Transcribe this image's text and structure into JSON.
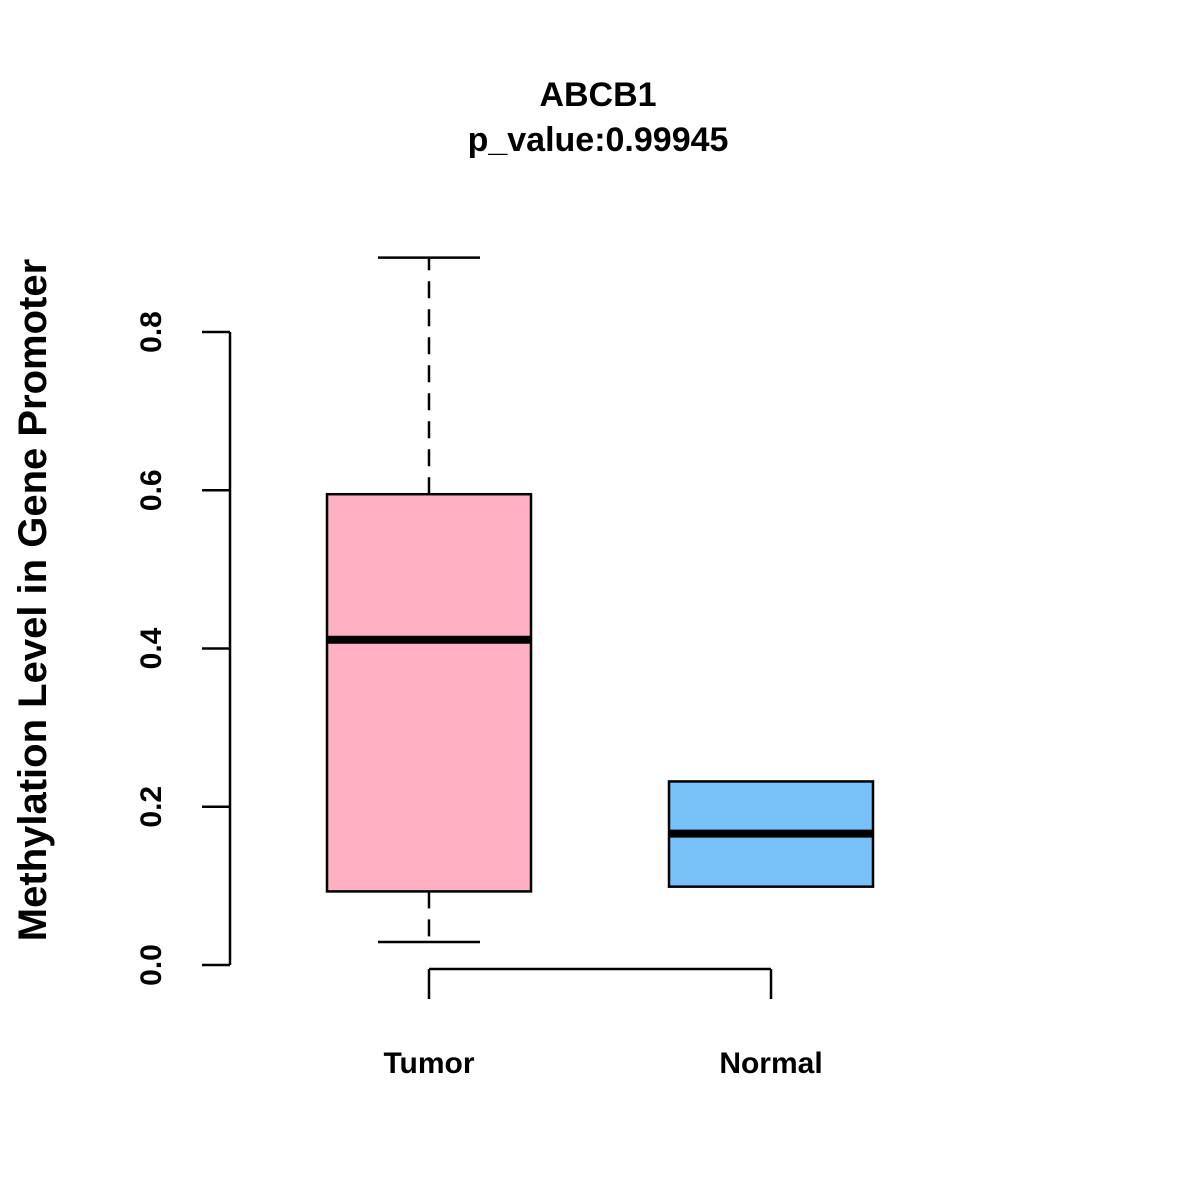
{
  "chart_data": {
    "type": "box",
    "title": "ABCB1",
    "subtitle": "p_value:0.99945",
    "xlabel": "",
    "ylabel": "Methylation Level in Gene Promoter",
    "ylim": [
      0.0,
      0.8
    ],
    "yticks": [
      "0.0",
      "0.2",
      "0.4",
      "0.6",
      "0.8"
    ],
    "categories": [
      "Tumor",
      "Normal"
    ],
    "boxes": [
      {
        "category": "Tumor",
        "whisker_low": 0.029,
        "q1": 0.093,
        "median": 0.411,
        "q3": 0.595,
        "whisker_high": 0.894,
        "color": "#FDB1C3"
      },
      {
        "category": "Normal",
        "whisker_low": 0.099,
        "q1": 0.099,
        "median": 0.166,
        "q3": 0.232,
        "whisker_high": 0.232,
        "color": "#78C0F8"
      }
    ],
    "grid": false,
    "legend": "none"
  }
}
